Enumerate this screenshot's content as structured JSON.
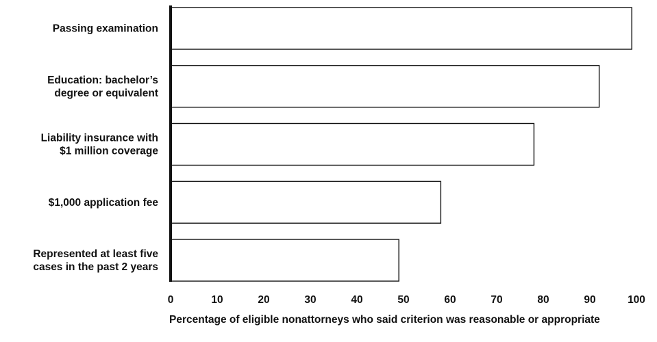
{
  "chart_data": {
    "type": "bar",
    "orientation": "horizontal",
    "categories": [
      "Passing examination",
      "Education: bachelor’s degree or equivalent",
      "Liability insurance with $1 million coverage",
      "$1,000 application fee",
      "Represented at least five cases in the past 2 years"
    ],
    "values": [
      99,
      92,
      78,
      58,
      49
    ],
    "xlabel": "Percentage of eligible nonattorneys who said criterion was reasonable or appropriate",
    "ylabel": "",
    "xlim": [
      0,
      100
    ],
    "xticks": [
      0,
      10,
      20,
      30,
      40,
      50,
      60,
      70,
      80,
      90,
      100
    ],
    "grid": false,
    "colors": {
      "bar_fill": "#ffffff",
      "bar_stroke": "#111111"
    }
  }
}
